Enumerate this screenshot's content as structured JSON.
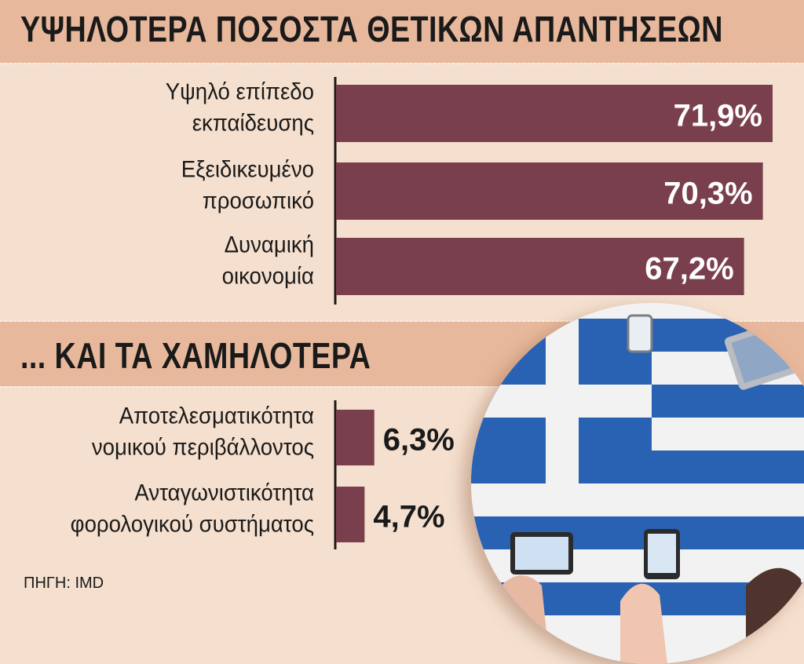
{
  "top_title": "ΥΨΗΛΟΤΕΡΑ ΠΟΣΟΣΤΑ ΘΕΤΙΚΩΝ ΑΠΑΝΤΗΣΕΩΝ",
  "bottom_title": "... ΚΑΙ ΤΑ ΧΑΜΗΛΟΤΕΡΑ",
  "source": "ΠΗΓΗ: IMD",
  "colors": {
    "bar": "#7a3f4d",
    "band": "#e8b89c",
    "background": "#f5e0cf",
    "flag_blue": "#2a62b3"
  },
  "chart_data": [
    {
      "type": "bar",
      "orientation": "horizontal",
      "title": "ΥΨΗΛΟΤΕΡΑ ΠΟΣΟΣΤΑ ΘΕΤΙΚΩΝ ΑΠΑΝΤΗΣΕΩΝ",
      "categories": [
        [
          "Υψηλό επίπεδο",
          "εκπαίδευσης"
        ],
        [
          "Εξειδικευμένο",
          "προσωπικό"
        ],
        [
          "Δυναμική",
          "οικονομία"
        ]
      ],
      "values": [
        71.9,
        70.3,
        67.2
      ],
      "value_labels": [
        "71,9%",
        "70,3%",
        "67,2%"
      ]
    },
    {
      "type": "bar",
      "orientation": "horizontal",
      "title": "... ΚΑΙ ΤΑ ΧΑΜΗΛΟΤΕΡΑ",
      "categories": [
        [
          "Αποτελεσματικότητα",
          "νομικού περιβάλλοντος"
        ],
        [
          "Ανταγωνιστικότητα",
          "φορολογικού συστήματος"
        ]
      ],
      "values": [
        6.3,
        4.7
      ],
      "value_labels": [
        "6,3%",
        "4,7%"
      ]
    }
  ]
}
